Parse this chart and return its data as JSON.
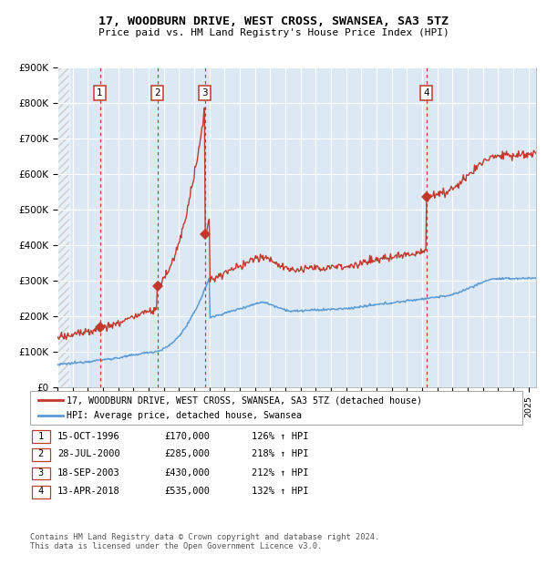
{
  "title1": "17, WOODBURN DRIVE, WEST CROSS, SWANSEA, SA3 5TZ",
  "title2": "Price paid vs. HM Land Registry's House Price Index (HPI)",
  "property_label": "17, WOODBURN DRIVE, WEST CROSS, SWANSEA, SA3 5TZ (detached house)",
  "hpi_label": "HPI: Average price, detached house, Swansea",
  "property_color": "#c0392b",
  "hpi_color": "#5b9bd5",
  "background_color": "#dce9f5",
  "sale_points": [
    {
      "num": 1,
      "date": "15-OCT-1996",
      "price": 170000,
      "x_year": 1996.79,
      "pct": "126%"
    },
    {
      "num": 2,
      "date": "28-JUL-2000",
      "price": 285000,
      "x_year": 2000.57,
      "pct": "218%"
    },
    {
      "num": 3,
      "date": "18-SEP-2003",
      "price": 430000,
      "x_year": 2003.71,
      "pct": "212%"
    },
    {
      "num": 4,
      "date": "13-APR-2018",
      "price": 535000,
      "x_year": 2018.28,
      "pct": "132%"
    }
  ],
  "ylim": [
    0,
    900000
  ],
  "xlim_start": 1994.0,
  "xlim_end": 2025.5,
  "yticks": [
    0,
    100000,
    200000,
    300000,
    400000,
    500000,
    600000,
    700000,
    800000,
    900000
  ],
  "ytick_labels": [
    "£0",
    "£100K",
    "£200K",
    "£300K",
    "£400K",
    "£500K",
    "£600K",
    "£700K",
    "£800K",
    "£900K"
  ],
  "footer": "Contains HM Land Registry data © Crown copyright and database right 2024.\nThis data is licensed under the Open Government Licence v3.0."
}
